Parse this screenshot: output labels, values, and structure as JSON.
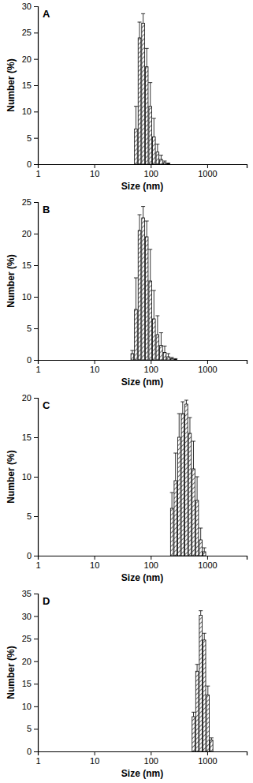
{
  "chart_data": [
    {
      "type": "histogram",
      "title": "A",
      "x_label": "Size (nm)",
      "y_label": "Number (%)",
      "log": "x",
      "bins": [
        50.75,
        58.77,
        68.06,
        78.82,
        91.28,
        105.7,
        122.4,
        141.8,
        164.2,
        190.1,
        220.2
      ],
      "values": [
        6.7,
        24,
        26.8,
        18.5,
        11,
        5.2,
        2.3,
        0.9,
        0.3,
        0.1
      ],
      "errors": [
        4.3,
        3,
        1.8,
        3.5,
        4.5,
        3.5,
        1.5,
        0.8,
        0.3,
        0.1
      ],
      "xlim": [
        1,
        5000
      ],
      "xticks": [
        1,
        10,
        100,
        1000
      ],
      "ylim": [
        0,
        30
      ],
      "yticks": [
        0,
        5,
        10,
        15,
        20,
        25,
        30
      ]
    },
    {
      "type": "histogram",
      "title": "B",
      "x_label": "Size (nm)",
      "y_label": "Number (%)",
      "log": "x",
      "bins": [
        43.82,
        50.75,
        58.77,
        68.06,
        78.82,
        91.28,
        105.7,
        122.4,
        141.8,
        164.2,
        190.1,
        220.2,
        255,
        295.3
      ],
      "values": [
        1,
        8,
        20.5,
        22.5,
        19.5,
        12.5,
        6.5,
        4,
        2.3,
        1.2,
        0.5,
        0.2,
        0.1
      ],
      "errors": [
        0.5,
        5,
        2.5,
        1.8,
        2.5,
        5,
        4.5,
        3,
        2,
        1,
        0.5,
        0.2,
        0.1
      ],
      "xlim": [
        1,
        5000
      ],
      "xticks": [
        1,
        10,
        100,
        1000
      ],
      "ylim": [
        0,
        25
      ],
      "yticks": [
        0,
        5,
        10,
        15,
        20,
        25
      ]
    },
    {
      "type": "histogram",
      "title": "C",
      "x_label": "Size (nm)",
      "y_label": "Number (%)",
      "log": "x",
      "bins": [
        220.2,
        255,
        295.3,
        342,
        396.1,
        458.7,
        531.2,
        615.1,
        712.4,
        825,
        955.4
      ],
      "values": [
        6,
        9.5,
        15,
        18,
        19.2,
        15.5,
        11,
        7,
        2,
        0.5
      ],
      "errors": [
        2,
        3.5,
        3,
        1.5,
        0.5,
        2,
        3.5,
        3,
        1.5,
        0.5
      ],
      "xlim": [
        1,
        5000
      ],
      "xticks": [
        1,
        10,
        100,
        1000
      ],
      "ylim": [
        0,
        20
      ],
      "yticks": [
        0,
        5,
        10,
        15,
        20
      ]
    },
    {
      "type": "histogram",
      "title": "D",
      "x_label": "Size (nm)",
      "y_label": "Number (%)",
      "log": "x",
      "bins": [
        531.2,
        615.1,
        712.4,
        825,
        955.4,
        1106,
        1281
      ],
      "values": [
        7.7,
        17.8,
        30.2,
        24.7,
        12.5,
        2.5
      ],
      "errors": [
        1,
        1.5,
        1,
        1.5,
        2,
        0.5
      ],
      "xlim": [
        1,
        5000
      ],
      "xticks": [
        1,
        10,
        100,
        1000
      ],
      "ylim": [
        0,
        35
      ],
      "yticks": [
        0,
        5,
        10,
        15,
        20,
        25,
        30,
        35
      ]
    }
  ]
}
